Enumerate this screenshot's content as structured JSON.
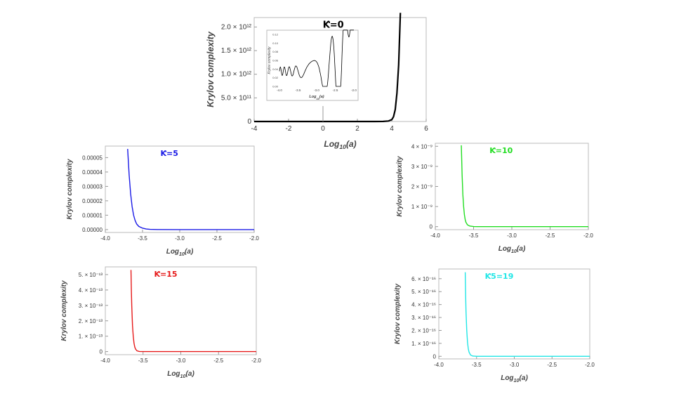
{
  "chart_data": [
    {
      "id": "k0",
      "type": "line",
      "annotation": "Ƙ=0",
      "xlabel": "Log₁₀(a)",
      "ylabel": "Krylov complexity",
      "xlim": [
        -4,
        6
      ],
      "ylim": [
        0,
        2200000000000.0
      ],
      "xticks": [
        "-4",
        "-2",
        "0",
        "2",
        "4",
        "6"
      ],
      "yticks": [
        "0",
        "5.0 × 10¹¹",
        "1.0 × 10¹²",
        "1.5 × 10¹²",
        "2.0 × 10¹²"
      ],
      "ytick_values": [
        0,
        500000000000.0,
        1000000000000.0,
        1500000000000.0,
        2000000000000.0
      ],
      "color": "#000000",
      "series": [
        {
          "x": [
            -4,
            0,
            2,
            3,
            3.5,
            3.8,
            4.0,
            4.1,
            4.2,
            4.3,
            4.4,
            4.5
          ],
          "y": [
            0,
            0,
            0,
            0,
            2000000000.0,
            10000000000.0,
            40000000000.0,
            100000000000.0,
            250000000000.0,
            600000000000.0,
            1200000000000.0,
            2300000000000.0
          ]
        }
      ],
      "inset": {
        "xlabel": "Log₁₀(a)",
        "ylabel": "Krylov complexity",
        "xticks": [
          "-4.0",
          "-3.5",
          "-3.0",
          "-2.5",
          "-2.0"
        ],
        "yticks": [
          "0.00",
          "0.02",
          "0.04",
          "0.06",
          "0.08",
          "0.10",
          "0.12"
        ],
        "note": "damped oscillation growing near -2.2"
      }
    },
    {
      "id": "k5",
      "type": "line",
      "annotation": "Ƙ=5",
      "xlabel": "Log₁₀(a)",
      "ylabel": "Krylov complexity",
      "xlim": [
        -4.0,
        -2.0
      ],
      "ylim": [
        -2e-06,
        5.8e-05
      ],
      "xticks": [
        "-4.0",
        "-3.5",
        "-3.0",
        "-2.5",
        "-2.0"
      ],
      "yticks": [
        "0.00000",
        "0.00001",
        "0.00002",
        "0.00003",
        "0.00004",
        "0.00005"
      ],
      "ytick_values": [
        0,
        1e-05,
        2e-05,
        3e-05,
        4e-05,
        5e-05
      ],
      "color": "#1a1ae6",
      "series": [
        {
          "x": [
            -3.7,
            -3.68,
            -3.66,
            -3.64,
            -3.62,
            -3.6,
            -3.58,
            -3.55,
            -3.5,
            -3.45,
            -3.4,
            -3.3,
            -3.0,
            -2.5,
            -2.0
          ],
          "y": [
            5.6e-05,
            3.8e-05,
            2.5e-05,
            1.6e-05,
            1e-05,
            6.4e-06,
            4e-06,
            2.2e-06,
            1e-06,
            4e-07,
            1.5e-07,
            3e-08,
            0,
            0,
            0
          ]
        }
      ]
    },
    {
      "id": "k10",
      "type": "line",
      "annotation": "Ƙ=10",
      "xlabel": "Log₁₀(a)",
      "ylabel": "Krylov complexity",
      "xlim": [
        -4.0,
        -2.0
      ],
      "ylim": [
        -1.5e-10,
        4.15e-09
      ],
      "xticks": [
        "-4.0",
        "-3.5",
        "-3.0",
        "-2.5",
        "-2.0"
      ],
      "yticks": [
        "0",
        "1 × 10⁻⁹",
        "2 × 10⁻⁹",
        "3 × 10⁻⁹",
        "4 × 10⁻⁹"
      ],
      "ytick_values": [
        0,
        1e-09,
        2e-09,
        3e-09,
        4e-09
      ],
      "color": "#22dd22",
      "series": [
        {
          "x": [
            -3.66,
            -3.65,
            -3.64,
            -3.63,
            -3.62,
            -3.61,
            -3.6,
            -3.58,
            -3.55,
            -3.5,
            -3.45,
            -3.0,
            -2.5,
            -2.0
          ],
          "y": [
            4.05e-09,
            2.6e-09,
            1.6e-09,
            1e-09,
            6e-10,
            3.6e-10,
            2.2e-10,
            9e-11,
            3e-11,
            5e-12,
            0,
            0,
            0,
            0
          ]
        }
      ]
    },
    {
      "id": "k15",
      "type": "line",
      "annotation": "Ƙ=15",
      "xlabel": "Log₁₀(a)",
      "ylabel": "Krylov complexity",
      "xlim": [
        -4.0,
        -2.0
      ],
      "ylim": [
        -2e-14,
        5.5e-13
      ],
      "xticks": [
        "-4.0",
        "-3.5",
        "-3.0",
        "-2.5",
        "-2.0"
      ],
      "yticks": [
        "0",
        "1. × 10⁻¹³",
        "2. × 10⁻¹³",
        "3. × 10⁻¹³",
        "4. × 10⁻¹³",
        "5. × 10⁻¹³"
      ],
      "ytick_values": [
        0,
        1e-13,
        2e-13,
        3e-13,
        4e-13,
        5e-13
      ],
      "color": "#e61a1a",
      "series": [
        {
          "x": [
            -3.66,
            -3.655,
            -3.65,
            -3.64,
            -3.63,
            -3.62,
            -3.61,
            -3.6,
            -3.58,
            -3.55,
            -3.5,
            -3.0,
            -2.5,
            -2.0
          ],
          "y": [
            5.3e-13,
            4e-13,
            3e-13,
            1.7e-13,
            1e-13,
            5.5e-14,
            3e-14,
            1.7e-14,
            5e-15,
            1e-15,
            0,
            0,
            0,
            0
          ]
        }
      ]
    },
    {
      "id": "k19",
      "type": "line",
      "annotation": "Ƙ5=19",
      "xlabel": "Log₁₀(a)",
      "ylabel": "Krylov complexity",
      "xlim": [
        -4.0,
        -2.0
      ],
      "ylim": [
        -2e-17,
        6.75e-16
      ],
      "xticks": [
        "-4.0",
        "-3.5",
        "-3.0",
        "-2.5",
        "-2.0"
      ],
      "yticks": [
        "0",
        "1. × 10⁻¹⁶",
        "2. × 10⁻¹⁶",
        "3. × 10⁻¹⁶",
        "4. × 10⁻¹⁶",
        "5. × 10⁻¹⁶",
        "6. × 10⁻¹⁶"
      ],
      "ytick_values": [
        0,
        1e-16,
        2e-16,
        3e-16,
        4e-16,
        5e-16,
        6e-16
      ],
      "color": "#22e6e6",
      "series": [
        {
          "x": [
            -3.65,
            -3.645,
            -3.64,
            -3.63,
            -3.62,
            -3.61,
            -3.6,
            -3.58,
            -3.55,
            -3.5,
            -3.0,
            -2.5,
            -2.0
          ],
          "y": [
            6.5e-16,
            4.8e-16,
            3.5e-16,
            2e-16,
            1.1e-16,
            6e-17,
            3.3e-17,
            1e-17,
            2e-18,
            0,
            0,
            0,
            0
          ]
        }
      ]
    }
  ]
}
